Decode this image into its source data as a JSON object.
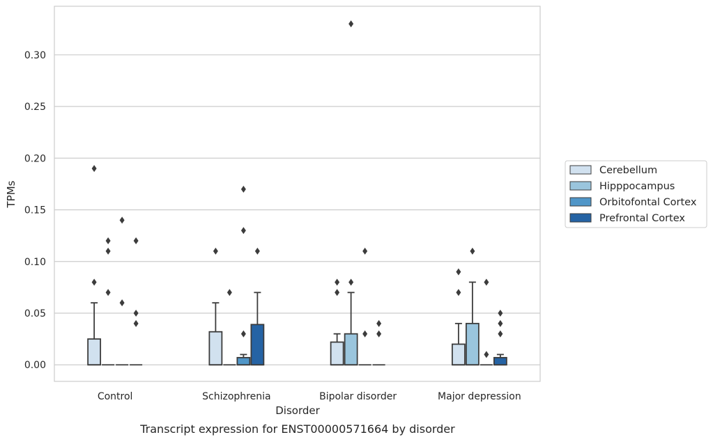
{
  "chart_data": {
    "type": "box",
    "caption": "Transcript expression for ENST00000571664 by disorder",
    "xlabel": "Disorder",
    "ylabel": "TPMs",
    "ylim": [
      -0.016,
      0.347
    ],
    "yticks": [
      "0.00",
      "0.05",
      "0.10",
      "0.15",
      "0.20",
      "0.25",
      "0.30"
    ],
    "grid": true,
    "legend_position": "right",
    "categories": [
      "Control",
      "Schizophrenia",
      "Bipolar disorder",
      "Major depression"
    ],
    "series": [
      {
        "name": "Cerebellum",
        "color": "#d1e1ef",
        "boxes": [
          {
            "q1": 0,
            "median": 0,
            "q3": 0.025,
            "whisker_low": 0,
            "whisker_high": 0.06,
            "outliers": [
              0.08,
              0.19
            ]
          },
          {
            "q1": 0,
            "median": 0,
            "q3": 0.032,
            "whisker_low": 0,
            "whisker_high": 0.06,
            "outliers": [
              0.11
            ]
          },
          {
            "q1": 0,
            "median": 0,
            "q3": 0.022,
            "whisker_low": 0,
            "whisker_high": 0.03,
            "outliers": [
              0.07,
              0.08
            ]
          },
          {
            "q1": 0,
            "median": 0,
            "q3": 0.02,
            "whisker_low": 0,
            "whisker_high": 0.04,
            "outliers": [
              0.07,
              0.09
            ]
          }
        ]
      },
      {
        "name": "Hipppocampus",
        "color": "#9ac5dd",
        "boxes": [
          {
            "q1": 0,
            "median": 0,
            "q3": 0,
            "whisker_low": 0,
            "whisker_high": 0,
            "outliers": [
              0.07,
              0.11,
              0.12
            ]
          },
          {
            "q1": 0,
            "median": 0,
            "q3": 0,
            "whisker_low": 0,
            "whisker_high": 0,
            "outliers": [
              0.07
            ]
          },
          {
            "q1": 0,
            "median": 0,
            "q3": 0.03,
            "whisker_low": 0,
            "whisker_high": 0.07,
            "outliers": [
              0.08,
              0.33
            ]
          },
          {
            "q1": 0,
            "median": 0,
            "q3": 0.04,
            "whisker_low": 0,
            "whisker_high": 0.08,
            "outliers": [
              0.11
            ]
          }
        ]
      },
      {
        "name": "Orbitofontal Cortex",
        "color": "#5096c8",
        "boxes": [
          {
            "q1": 0,
            "median": 0,
            "q3": 0,
            "whisker_low": 0,
            "whisker_high": 0,
            "outliers": [
              0.06,
              0.14
            ]
          },
          {
            "q1": 0,
            "median": 0,
            "q3": 0.007,
            "whisker_low": 0,
            "whisker_high": 0.01,
            "outliers": [
              0.03,
              0.13,
              0.17
            ]
          },
          {
            "q1": 0,
            "median": 0,
            "q3": 0,
            "whisker_low": 0,
            "whisker_high": 0,
            "outliers": [
              0.03,
              0.11
            ]
          },
          {
            "q1": 0,
            "median": 0,
            "q3": 0,
            "whisker_low": 0,
            "whisker_high": 0,
            "outliers": [
              0.01,
              0.08
            ]
          }
        ]
      },
      {
        "name": "Prefrontal Cortex",
        "color": "#2563a4",
        "boxes": [
          {
            "q1": 0,
            "median": 0,
            "q3": 0,
            "whisker_low": 0,
            "whisker_high": 0,
            "outliers": [
              0.04,
              0.05,
              0.12
            ]
          },
          {
            "q1": 0,
            "median": 0,
            "q3": 0.039,
            "whisker_low": 0,
            "whisker_high": 0.07,
            "outliers": [
              0.11
            ]
          },
          {
            "q1": 0,
            "median": 0,
            "q3": 0,
            "whisker_low": 0,
            "whisker_high": 0,
            "outliers": [
              0.03,
              0.04
            ]
          },
          {
            "q1": 0,
            "median": 0,
            "q3": 0.007,
            "whisker_low": 0,
            "whisker_high": 0.01,
            "outliers": [
              0.03,
              0.04,
              0.05
            ]
          }
        ]
      }
    ]
  }
}
